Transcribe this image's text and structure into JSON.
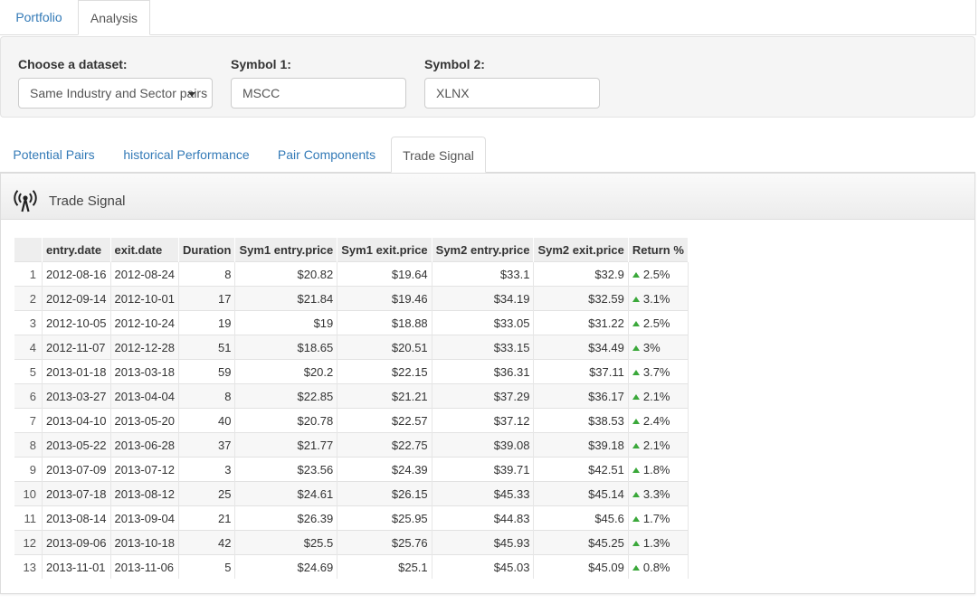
{
  "nav": {
    "tabs": [
      {
        "label": "Portfolio"
      },
      {
        "label": "Analysis"
      }
    ]
  },
  "controls": {
    "dataset_label": "Choose a dataset:",
    "dataset_value": "Same Industry and Sector pairs",
    "symbol1_label": "Symbol 1:",
    "symbol1_value": "MSCC",
    "symbol2_label": "Symbol 2:",
    "symbol2_value": "XLNX"
  },
  "subtabs": [
    {
      "label": "Potential Pairs"
    },
    {
      "label": "historical Performance"
    },
    {
      "label": "Pair Components"
    },
    {
      "label": "Trade Signal"
    }
  ],
  "panel": {
    "title": "Trade Signal",
    "icon": "broadcast-tower-icon"
  },
  "table": {
    "columns": [
      "entry.date",
      "exit.date",
      "Duration",
      "Sym1 entry.price",
      "Sym1 exit.price",
      "Sym2 entry.price",
      "Sym2 exit.price",
      "Return %"
    ],
    "rows": [
      [
        "1",
        "2012-08-16",
        "2012-08-24",
        "8",
        "$20.82",
        "$19.64",
        "$33.1",
        "$32.9",
        "2.5%"
      ],
      [
        "2",
        "2012-09-14",
        "2012-10-01",
        "17",
        "$21.84",
        "$19.46",
        "$34.19",
        "$32.59",
        "3.1%"
      ],
      [
        "3",
        "2012-10-05",
        "2012-10-24",
        "19",
        "$19",
        "$18.88",
        "$33.05",
        "$31.22",
        "2.5%"
      ],
      [
        "4",
        "2012-11-07",
        "2012-12-28",
        "51",
        "$18.65",
        "$20.51",
        "$33.15",
        "$34.49",
        "3%"
      ],
      [
        "5",
        "2013-01-18",
        "2013-03-18",
        "59",
        "$20.2",
        "$22.15",
        "$36.31",
        "$37.11",
        "3.7%"
      ],
      [
        "6",
        "2013-03-27",
        "2013-04-04",
        "8",
        "$22.85",
        "$21.21",
        "$37.29",
        "$36.17",
        "2.1%"
      ],
      [
        "7",
        "2013-04-10",
        "2013-05-20",
        "40",
        "$20.78",
        "$22.57",
        "$37.12",
        "$38.53",
        "2.4%"
      ],
      [
        "8",
        "2013-05-22",
        "2013-06-28",
        "37",
        "$21.77",
        "$22.75",
        "$39.08",
        "$39.18",
        "2.1%"
      ],
      [
        "9",
        "2013-07-09",
        "2013-07-12",
        "3",
        "$23.56",
        "$24.39",
        "$39.71",
        "$42.51",
        "1.8%"
      ],
      [
        "10",
        "2013-07-18",
        "2013-08-12",
        "25",
        "$24.61",
        "$26.15",
        "$45.33",
        "$45.14",
        "3.3%"
      ],
      [
        "11",
        "2013-08-14",
        "2013-09-04",
        "21",
        "$26.39",
        "$25.95",
        "$44.83",
        "$45.6",
        "1.7%"
      ],
      [
        "12",
        "2013-09-06",
        "2013-10-18",
        "42",
        "$25.5",
        "$25.76",
        "$45.93",
        "$45.25",
        "1.3%"
      ],
      [
        "13",
        "2013-11-01",
        "2013-11-06",
        "5",
        "$24.69",
        "$25.1",
        "$45.03",
        "$45.09",
        "0.8%"
      ]
    ]
  },
  "colors": {
    "link": "#337ab7",
    "up_arrow": "#3aa83a"
  }
}
